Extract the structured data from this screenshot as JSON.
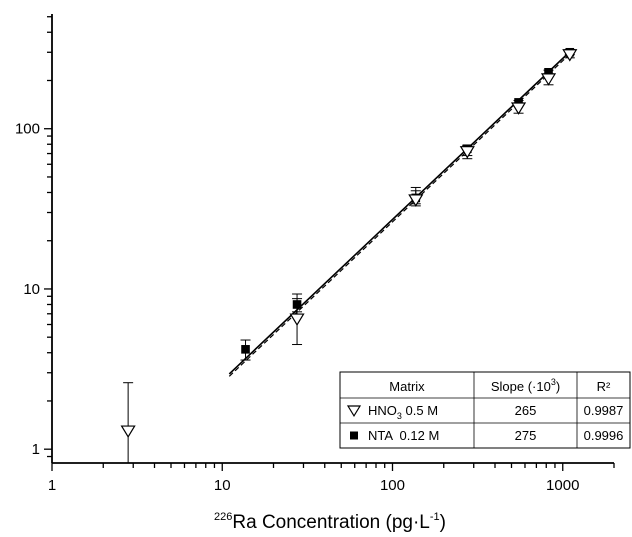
{
  "chart_data": {
    "type": "scatter",
    "x_scale": "log",
    "y_scale": "log",
    "xlim": [
      1,
      2000
    ],
    "ylim": [
      0.82,
      520
    ],
    "x_ticks": [
      1,
      10,
      100,
      1000
    ],
    "x_tick_labels": [
      "1",
      "10",
      "100",
      "1000"
    ],
    "y_ticks": [
      1,
      10,
      100
    ],
    "y_tick_labels": [
      "1",
      "10",
      "100"
    ],
    "xlabel": {
      "sup": "226",
      "main": "Ra Concentration (pg·L",
      "exp": "-1",
      "close": ")"
    },
    "ylabel": "",
    "grid": false,
    "series": [
      {
        "name": "HNO3 0.5 M",
        "marker": "open-triangle-down",
        "points": [
          {
            "x": 2.8,
            "y": 1.3,
            "err_up": 2.6,
            "err_low": null
          },
          {
            "x": 27.5,
            "y": 6.5,
            "err_up": 8.7,
            "err_low": 4.5
          },
          {
            "x": 137,
            "y": 36,
            "err_up": 41,
            "err_low": 33
          },
          {
            "x": 275,
            "y": 72,
            "err_up": 78,
            "err_low": 65
          },
          {
            "x": 550,
            "y": 135,
            "err_up": 143,
            "err_low": 125
          },
          {
            "x": 825,
            "y": 205,
            "err_up": 220,
            "err_low": 188
          },
          {
            "x": 1100,
            "y": 290,
            "err_up": 305,
            "err_low": 277
          }
        ],
        "fit": {
          "slope_display": "265",
          "r2": "0.9987",
          "line_style": "dashed"
        }
      },
      {
        "name": "NTA 0.12 M",
        "marker": "filled-square",
        "points": [
          {
            "x": 13.7,
            "y": 4.2,
            "err_up": 4.8,
            "err_low": 3.6
          },
          {
            "x": 27.5,
            "y": 8.0,
            "err_up": 9.3,
            "err_low": 7.2
          },
          {
            "x": 137,
            "y": 37,
            "err_up": 43,
            "err_low": 34
          },
          {
            "x": 275,
            "y": 75,
            "err_up": 79,
            "err_low": 68
          },
          {
            "x": 550,
            "y": 146,
            "err_up": 150,
            "err_low": 141
          },
          {
            "x": 825,
            "y": 225,
            "err_up": 232,
            "err_low": 218
          },
          {
            "x": 1100,
            "y": 300,
            "err_up": 312,
            "err_low": 290
          }
        ],
        "fit": {
          "slope_display": "275",
          "r2": "0.9996",
          "line_style": "solid"
        }
      }
    ],
    "fit_lines": [
      {
        "series": "HNO3 0.5 M",
        "x": [
          11,
          1110
        ],
        "y": [
          2.85,
          295
        ]
      },
      {
        "series": "NTA 0.12 M",
        "x": [
          11,
          1110
        ],
        "y": [
          2.95,
          305
        ]
      }
    ],
    "legend": {
      "placement": "bottom-right",
      "headers": {
        "matrix": "Matrix",
        "slope_main": "Slope (·10",
        "slope_exp": "3",
        "slope_close": ")",
        "r2": "R²"
      },
      "rows": [
        {
          "marker": "open-triangle-down",
          "label_main": "HNO",
          "label_sub": "3",
          "label_rest": " 0.5 M",
          "slope": "265",
          "r2": "0.9987"
        },
        {
          "marker": "filled-square",
          "label_main": "NTA  0.12 M",
          "label_sub": "",
          "label_rest": "",
          "slope": "275",
          "r2": "0.9996"
        }
      ]
    },
    "colors": {
      "axis": "#000000",
      "marker_fill": "#000000",
      "open_marker_fill": "#ffffff"
    }
  }
}
